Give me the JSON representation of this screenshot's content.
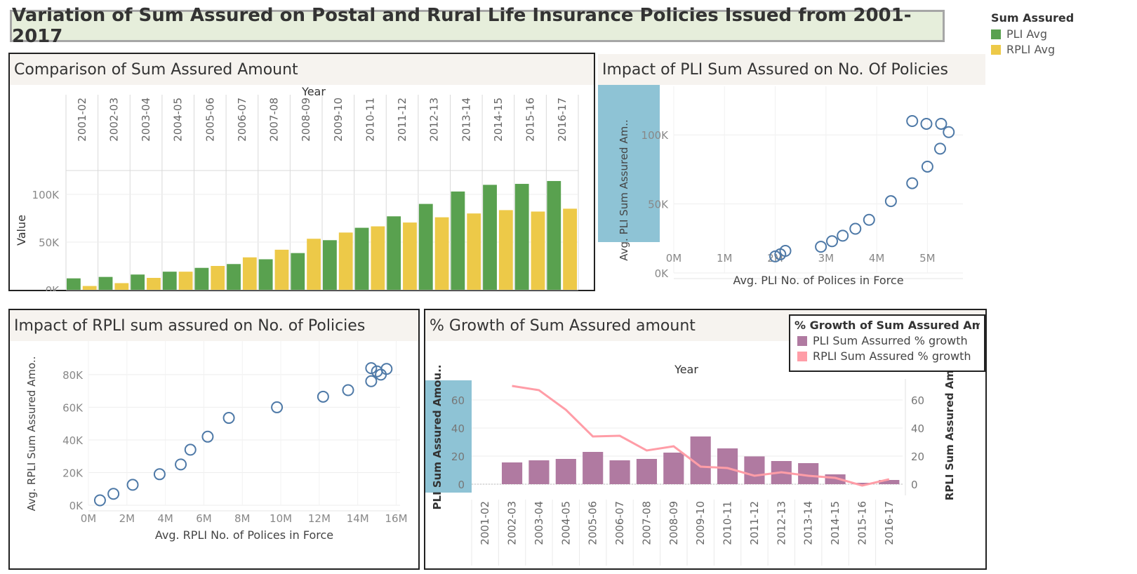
{
  "title": "Variation of Sum Assured on Postal and Rural Life Insurance Policies Issued from 2001-2017",
  "legend": {
    "title": "Sum Assured",
    "items": [
      {
        "label": "PLI Avg",
        "color": "#59a14f"
      },
      {
        "label": "RPLI Avg",
        "color": "#edc948"
      }
    ]
  },
  "panels": {
    "comparison": {
      "title": "Comparison of Sum Assured Amount"
    },
    "pli_impact": {
      "title": "Impact of PLI Sum Assured on No. Of Policies"
    },
    "rpli_impact": {
      "title": "Impact of RPLI sum assured on No. of Policies"
    },
    "growth": {
      "title": "% Growth of Sum Assured amount"
    }
  },
  "growth_legend": {
    "title": "% Growth of Sum Assured Amo..",
    "items": [
      {
        "label": "PLI Sum Assurred % growth",
        "color": "#b07aa1"
      },
      {
        "label": "RPLI Sum Assured % growth",
        "color": "#ff9da7"
      }
    ]
  },
  "chart_data": [
    {
      "type": "bar",
      "title": "Comparison of Sum Assured Amount",
      "xlabel": "Year",
      "ylabel": "Value",
      "categories": [
        "2001-02",
        "2002-03",
        "2003-04",
        "2004-05",
        "2005-06",
        "2006-07",
        "2007-08",
        "2008-09",
        "2009-10",
        "2010-11",
        "2011-12",
        "2012-13",
        "2013-14",
        "2014-15",
        "2015-16",
        "2016-17"
      ],
      "ylim": [
        0,
        125000
      ],
      "yticks": [
        {
          "v": 0,
          "label": "0K"
        },
        {
          "v": 50000,
          "label": "50K"
        },
        {
          "v": 100000,
          "label": "100K"
        }
      ],
      "series": [
        {
          "name": "PLI Avg",
          "color": "#59a14f",
          "values": [
            12000,
            13500,
            16000,
            19000,
            23000,
            27000,
            32000,
            38500,
            52000,
            65000,
            77000,
            90000,
            103000,
            110000,
            111000,
            114000
          ]
        },
        {
          "name": "RPLI Avg",
          "color": "#edc948",
          "values": [
            4000,
            7000,
            12500,
            19000,
            25000,
            34000,
            42000,
            53500,
            60000,
            66500,
            70500,
            76000,
            80000,
            83500,
            82000,
            85000
          ]
        }
      ]
    },
    {
      "type": "scatter",
      "title": "Impact of PLI Sum Assured on No. Of Policies",
      "xlabel": "Avg. PLI  No. of Polices in Force",
      "ylabel": "Avg. PLI Sum Assured Am..",
      "xlim": [
        0,
        5700000
      ],
      "ylim": [
        0,
        125000
      ],
      "xticks": [
        {
          "v": 0,
          "label": "0M"
        },
        {
          "v": 1000000,
          "label": "1M"
        },
        {
          "v": 2000000,
          "label": "2M"
        },
        {
          "v": 3000000,
          "label": "3M"
        },
        {
          "v": 4000000,
          "label": "4M"
        },
        {
          "v": 5000000,
          "label": "5M"
        }
      ],
      "yticks": [
        {
          "v": 0,
          "label": "0K"
        },
        {
          "v": 50000,
          "label": "50K"
        },
        {
          "v": 100000,
          "label": "100K"
        }
      ],
      "color": "#4e79a7",
      "points": [
        [
          2000000,
          12000
        ],
        [
          2100000,
          13500
        ],
        [
          2200000,
          16000
        ],
        [
          2900000,
          19000
        ],
        [
          3120000,
          23000
        ],
        [
          3330000,
          27000
        ],
        [
          3580000,
          32000
        ],
        [
          3850000,
          38500
        ],
        [
          4280000,
          52000
        ],
        [
          4700000,
          65000
        ],
        [
          5000000,
          77000
        ],
        [
          5250000,
          90000
        ],
        [
          4700000,
          110000
        ],
        [
          4980000,
          108000
        ],
        [
          5270000,
          108000
        ],
        [
          5420000,
          102000
        ]
      ]
    },
    {
      "type": "scatter",
      "title": "Impact of RPLI sum assured on No. of Policies",
      "xlabel": "Avg. RPLI No. of Polices in Force",
      "ylabel": "Avg. RPLI Sum Assured Amo..",
      "xlim": [
        0,
        16200000
      ],
      "ylim": [
        0,
        92000
      ],
      "xticks": [
        {
          "v": 0,
          "label": "0M"
        },
        {
          "v": 2000000,
          "label": "2M"
        },
        {
          "v": 4000000,
          "label": "4M"
        },
        {
          "v": 6000000,
          "label": "6M"
        },
        {
          "v": 8000000,
          "label": "8M"
        },
        {
          "v": 10000000,
          "label": "10M"
        },
        {
          "v": 12000000,
          "label": "12M"
        },
        {
          "v": 14000000,
          "label": "14M"
        },
        {
          "v": 16000000,
          "label": "16M"
        }
      ],
      "yticks": [
        {
          "v": 0,
          "label": "0K"
        },
        {
          "v": 20000,
          "label": "20K"
        },
        {
          "v": 40000,
          "label": "40K"
        },
        {
          "v": 60000,
          "label": "60K"
        },
        {
          "v": 80000,
          "label": "80K"
        }
      ],
      "color": "#4e79a7",
      "points": [
        [
          600000,
          3000
        ],
        [
          1300000,
          7000
        ],
        [
          2300000,
          12500
        ],
        [
          3700000,
          19000
        ],
        [
          4800000,
          25000
        ],
        [
          5300000,
          34000
        ],
        [
          6200000,
          42000
        ],
        [
          7300000,
          53500
        ],
        [
          9800000,
          60000
        ],
        [
          12200000,
          66500
        ],
        [
          13500000,
          70500
        ],
        [
          14700000,
          76000
        ],
        [
          14700000,
          84000
        ],
        [
          15000000,
          82000
        ],
        [
          15200000,
          80000
        ],
        [
          15500000,
          83500
        ]
      ]
    },
    {
      "type": "bar",
      "title": "% Growth of Sum Assured amount",
      "xlabel": "Year",
      "ylabel": "PLI Sum Assured Amou..",
      "ylabel_right": "RPLI Sum Assured Amo",
      "categories": [
        "2001-02",
        "2002-03",
        "2003-04",
        "2004-05",
        "2005-06",
        "2006-07",
        "2007-08",
        "2008-09",
        "2009-10",
        "2010-11",
        "2011-12",
        "2012-13",
        "2013-14",
        "2014-15",
        "2015-16",
        "2016-17"
      ],
      "ylim": [
        -5,
        72
      ],
      "yticks": [
        {
          "v": 0,
          "label": "0"
        },
        {
          "v": 20,
          "label": "20"
        },
        {
          "v": 40,
          "label": "40"
        },
        {
          "v": 60,
          "label": "60"
        }
      ],
      "series": [
        {
          "name": "PLI Sum Assurred % growth",
          "type": "bar",
          "color": "#b07aa1",
          "values": [
            null,
            15.5,
            17,
            18,
            23,
            17,
            18,
            22.5,
            34,
            25.5,
            19.8,
            16.5,
            15,
            7,
            1,
            3
          ]
        },
        {
          "name": "RPLI Sum Assured % growth",
          "type": "line",
          "color": "#ff9da7",
          "values": [
            null,
            70,
            67,
            53,
            34,
            34.5,
            24,
            27,
            12.5,
            11.5,
            6,
            8.5,
            6,
            4.5,
            -1,
            3.5
          ]
        }
      ]
    }
  ]
}
